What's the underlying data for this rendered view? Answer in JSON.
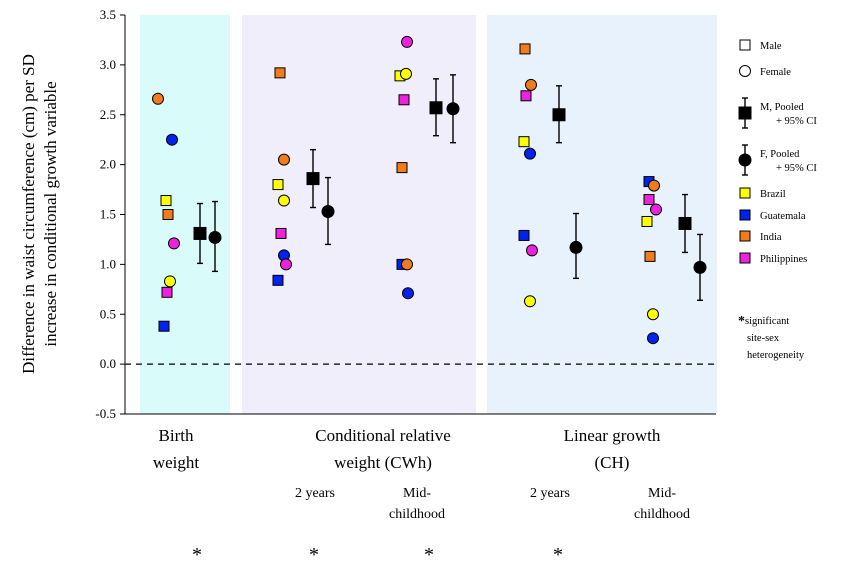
{
  "chart_data": {
    "type": "scatter",
    "ylabel_line1": "Difference in waist circumference (cm) per SD",
    "ylabel_line2": "increase in conditional growth variable",
    "ylim": [
      -0.5,
      3.5
    ],
    "yticks": [
      "3.5",
      "3.0",
      "2.5",
      "2.0",
      "1.5",
      "1.0",
      "0.5",
      "0.0",
      "-0.5"
    ],
    "reference_line": 0.0,
    "panels": [
      {
        "name": "birth-weight",
        "color": "#d9fbfa"
      },
      {
        "name": "conditional-relative-weight",
        "color": "#f0eefa"
      },
      {
        "name": "linear-growth",
        "color": "#e8f2fc"
      }
    ],
    "group_labels": [
      {
        "name": "birth-weight",
        "lines": [
          "Birth",
          "weight"
        ]
      },
      {
        "name": "cwh",
        "lines": [
          "Conditional relative",
          "weight  (CWh)"
        ]
      },
      {
        "name": "ch",
        "lines": [
          "Linear growth",
          "(CH)"
        ]
      }
    ],
    "sub_labels": [
      {
        "name": "cwh-2-years",
        "lines": [
          "2 years"
        ]
      },
      {
        "name": "cwh-mid-childhood",
        "lines": [
          "Mid-",
          "childhood"
        ]
      },
      {
        "name": "ch-2-years",
        "lines": [
          "2 years"
        ]
      },
      {
        "name": "ch-mid-childhood",
        "lines": [
          "Mid-",
          "childhood"
        ]
      }
    ],
    "asterisk_text": "*",
    "site_colors": {
      "Brazil": "#ffff00",
      "Guatemala": "#0022ee",
      "India": "#f07c1c",
      "Philippines": "#ee22dd"
    },
    "groups": [
      {
        "name": "birth-weight",
        "points": [
          {
            "site": "India",
            "sex": "F",
            "y": 2.66
          },
          {
            "site": "Guatemala",
            "sex": "F",
            "y": 2.25
          },
          {
            "site": "Brazil",
            "sex": "M",
            "y": 1.64
          },
          {
            "site": "India",
            "sex": "M",
            "y": 1.5
          },
          {
            "site": "Philippines",
            "sex": "F",
            "y": 1.21
          },
          {
            "site": "Brazil",
            "sex": "F",
            "y": 0.83
          },
          {
            "site": "Philippines",
            "sex": "M",
            "y": 0.72
          },
          {
            "site": "Guatemala",
            "sex": "M",
            "y": 0.38
          }
        ],
        "pooled": [
          {
            "sex": "M",
            "y": 1.31,
            "lo": 1.01,
            "hi": 1.61
          },
          {
            "sex": "F",
            "y": 1.27,
            "lo": 0.93,
            "hi": 1.63
          }
        ]
      },
      {
        "name": "cwh-2-years",
        "points": [
          {
            "site": "India",
            "sex": "M",
            "y": 2.92
          },
          {
            "site": "India",
            "sex": "F",
            "y": 2.05
          },
          {
            "site": "Brazil",
            "sex": "M",
            "y": 1.8
          },
          {
            "site": "Brazil",
            "sex": "F",
            "y": 1.64
          },
          {
            "site": "Philippines",
            "sex": "M",
            "y": 1.31
          },
          {
            "site": "Guatemala",
            "sex": "F",
            "y": 1.09
          },
          {
            "site": "Philippines",
            "sex": "F",
            "y": 1.0
          },
          {
            "site": "Guatemala",
            "sex": "M",
            "y": 0.84
          }
        ],
        "pooled": [
          {
            "sex": "M",
            "y": 1.86,
            "lo": 1.57,
            "hi": 2.15
          },
          {
            "sex": "F",
            "y": 1.53,
            "lo": 1.2,
            "hi": 1.87
          }
        ]
      },
      {
        "name": "cwh-mid-childhood",
        "points": [
          {
            "site": "Philippines",
            "sex": "F",
            "y": 3.23
          },
          {
            "site": "Brazil",
            "sex": "M",
            "y": 2.89
          },
          {
            "site": "Brazil",
            "sex": "F",
            "y": 2.91
          },
          {
            "site": "Philippines",
            "sex": "M",
            "y": 2.65
          },
          {
            "site": "India",
            "sex": "M",
            "y": 1.97
          },
          {
            "site": "Guatemala",
            "sex": "M",
            "y": 1.0
          },
          {
            "site": "India",
            "sex": "F",
            "y": 1.0
          },
          {
            "site": "Guatemala",
            "sex": "F",
            "y": 0.71
          }
        ],
        "pooled": [
          {
            "sex": "M",
            "y": 2.57,
            "lo": 2.29,
            "hi": 2.86
          },
          {
            "sex": "F",
            "y": 2.56,
            "lo": 2.22,
            "hi": 2.9
          }
        ]
      },
      {
        "name": "ch-2-years",
        "points": [
          {
            "site": "India",
            "sex": "M",
            "y": 3.16
          },
          {
            "site": "India",
            "sex": "F",
            "y": 2.8
          },
          {
            "site": "Philippines",
            "sex": "M",
            "y": 2.69
          },
          {
            "site": "Brazil",
            "sex": "M",
            "y": 2.23
          },
          {
            "site": "Guatemala",
            "sex": "F",
            "y": 2.11
          },
          {
            "site": "Guatemala",
            "sex": "M",
            "y": 1.29
          },
          {
            "site": "Philippines",
            "sex": "F",
            "y": 1.14
          },
          {
            "site": "Brazil",
            "sex": "F",
            "y": 0.63
          }
        ],
        "pooled": [
          {
            "sex": "M",
            "y": 2.5,
            "lo": 2.22,
            "hi": 2.79
          },
          {
            "sex": "F",
            "y": 1.17,
            "lo": 0.86,
            "hi": 1.51
          }
        ]
      },
      {
        "name": "ch-mid-childhood",
        "points": [
          {
            "site": "Guatemala",
            "sex": "M",
            "y": 1.83
          },
          {
            "site": "India",
            "sex": "F",
            "y": 1.79
          },
          {
            "site": "Philippines",
            "sex": "M",
            "y": 1.65
          },
          {
            "site": "Philippines",
            "sex": "F",
            "y": 1.55
          },
          {
            "site": "Brazil",
            "sex": "M",
            "y": 1.43
          },
          {
            "site": "India",
            "sex": "M",
            "y": 1.08
          },
          {
            "site": "Brazil",
            "sex": "F",
            "y": 0.5
          },
          {
            "site": "Guatemala",
            "sex": "F",
            "y": 0.26
          }
        ],
        "pooled": [
          {
            "sex": "M",
            "y": 1.41,
            "lo": 1.12,
            "hi": 1.7
          },
          {
            "sex": "F",
            "y": 0.97,
            "lo": 0.64,
            "hi": 1.3
          }
        ]
      }
    ],
    "legend": [
      {
        "name": "male",
        "marker": "open-square",
        "lines": [
          "Male"
        ]
      },
      {
        "name": "female",
        "marker": "open-circle",
        "lines": [
          "Female"
        ]
      },
      {
        "name": "m-pooled",
        "marker": "black-square-ci",
        "lines": [
          "M, Pooled",
          "+ 95% CI"
        ]
      },
      {
        "name": "f-pooled",
        "marker": "black-circle-ci",
        "lines": [
          "F, Pooled",
          "+ 95% CI"
        ]
      },
      {
        "name": "brazil",
        "marker": "Brazil",
        "lines": [
          "Brazil"
        ]
      },
      {
        "name": "guatemala",
        "marker": "Guatemala",
        "lines": [
          "Guatemala"
        ]
      },
      {
        "name": "india",
        "marker": "India",
        "lines": [
          "India"
        ]
      },
      {
        "name": "philippines",
        "marker": "Philippines",
        "lines": [
          "Philippines"
        ]
      },
      {
        "name": "significant",
        "marker": "asterisk",
        "lines": [
          "significant",
          "site-sex",
          "heterogeneity"
        ]
      }
    ]
  }
}
